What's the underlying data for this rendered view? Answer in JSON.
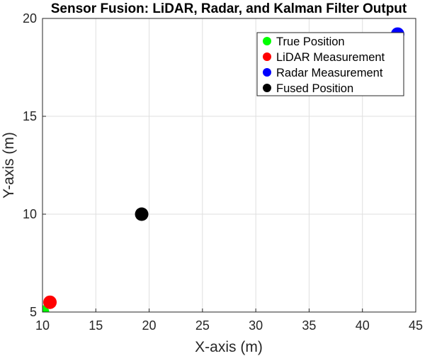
{
  "chart_data": {
    "type": "scatter",
    "title": "Sensor Fusion: LiDAR, Radar, and Kalman Filter Output",
    "xlabel": "X-axis (m)",
    "ylabel": "Y-axis (m)",
    "xlim": [
      10,
      45
    ],
    "ylim": [
      5,
      20
    ],
    "xticks": [
      10,
      15,
      20,
      25,
      30,
      35,
      40,
      45
    ],
    "yticks": [
      5,
      10,
      15,
      20
    ],
    "xtick_labels": [
      "10",
      "15",
      "20",
      "25",
      "30",
      "35",
      "40",
      "45"
    ],
    "ytick_labels": [
      "5",
      "10",
      "15",
      "20"
    ],
    "grid": true,
    "legend_position": "top-right",
    "series": [
      {
        "name": "True Position",
        "color": "#00ff00",
        "points": [
          {
            "x": 10.0,
            "y": 5.0
          }
        ]
      },
      {
        "name": "LiDAR Measurement",
        "color": "#ff0000",
        "points": [
          {
            "x": 10.7,
            "y": 5.5
          }
        ]
      },
      {
        "name": "Radar Measurement",
        "color": "#0000ff",
        "points": [
          {
            "x": 43.3,
            "y": 19.2
          }
        ]
      },
      {
        "name": "Fused Position",
        "color": "#000000",
        "points": [
          {
            "x": 19.3,
            "y": 10.0
          }
        ]
      }
    ]
  }
}
